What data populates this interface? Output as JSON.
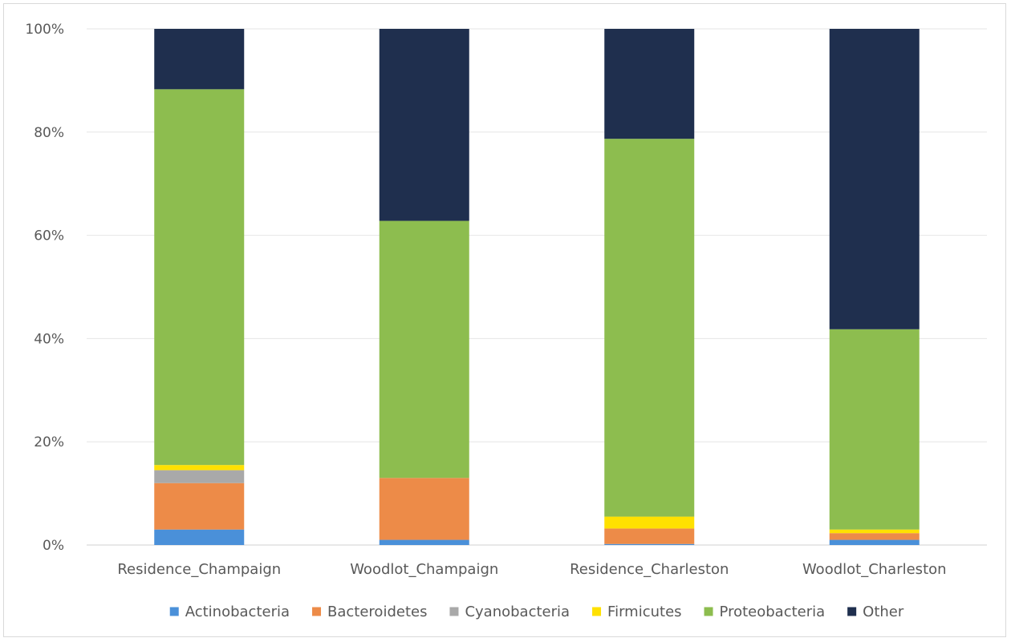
{
  "chart_data": {
    "type": "bar",
    "stacked": true,
    "percent": true,
    "categories": [
      "Residence_Champaign",
      "Woodlot_Champaign",
      "Residence_Charleston",
      "Woodlot_Charleston"
    ],
    "series": [
      {
        "name": "Actinobacteria",
        "color": "#4a90d9",
        "values": [
          3.0,
          1.0,
          0.2,
          1.0
        ]
      },
      {
        "name": "Bacteroidetes",
        "color": "#ed8b48",
        "values": [
          9.0,
          12.0,
          3.0,
          1.3
        ]
      },
      {
        "name": "Cyanobacteria",
        "color": "#a9a9a9",
        "values": [
          2.5,
          0.0,
          0.0,
          0.0
        ]
      },
      {
        "name": "Firmicutes",
        "color": "#ffe100",
        "values": [
          1.0,
          0.0,
          2.3,
          0.7
        ]
      },
      {
        "name": "Proteobacteria",
        "color": "#8dbd4f",
        "values": [
          72.8,
          49.8,
          73.2,
          38.8
        ]
      },
      {
        "name": "Other",
        "color": "#1f2f4e",
        "values": [
          11.7,
          37.2,
          21.3,
          58.2
        ]
      }
    ],
    "ylim": [
      0,
      100
    ],
    "yticks": [
      "0%",
      "20%",
      "40%",
      "60%",
      "80%",
      "100%"
    ],
    "grid": true,
    "legend_position": "bottom"
  }
}
